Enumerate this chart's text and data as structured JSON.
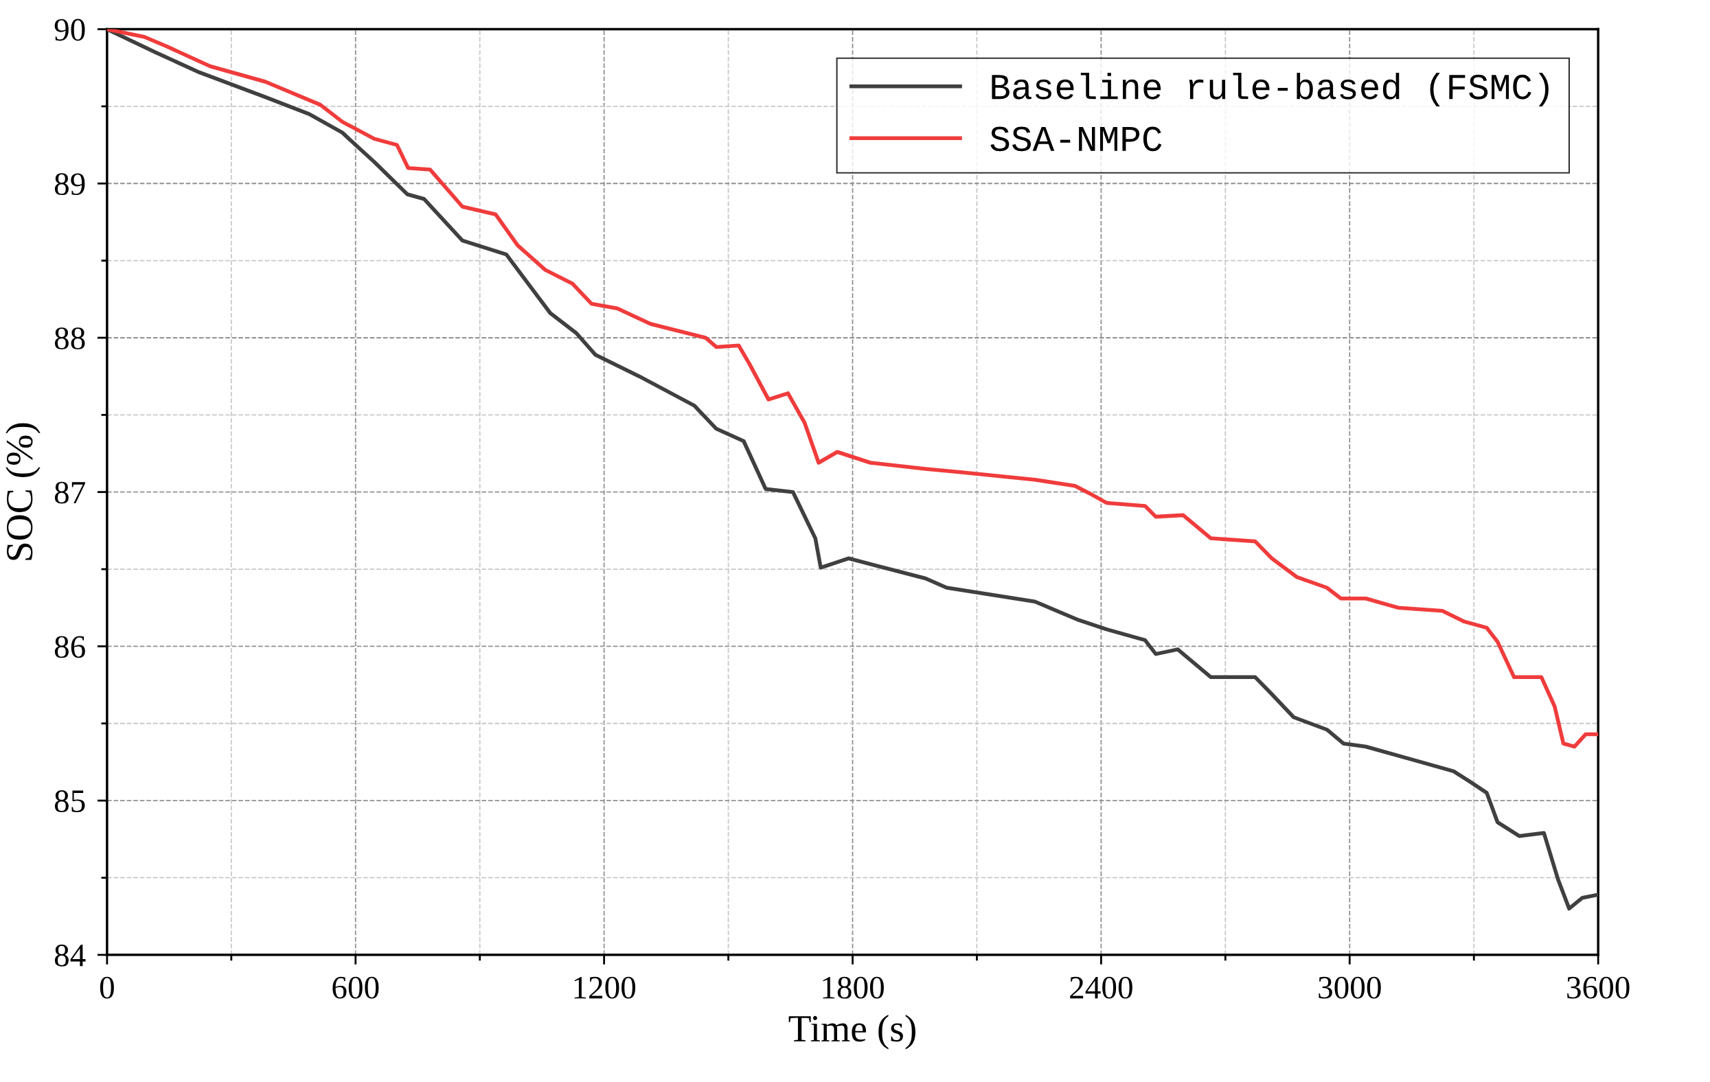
{
  "chart_data": {
    "type": "line",
    "xlabel": "Time (s)",
    "ylabel": "SOC (%)",
    "xlim": [
      0,
      3600
    ],
    "ylim": [
      84,
      90
    ],
    "xticks": [
      0,
      {
        "value": 300,
        "label": null
      },
      600,
      {
        "value": 900,
        "label": null
      },
      1200,
      {
        "value": 1500,
        "label": null
      },
      1800,
      {
        "value": 2100,
        "label": null
      },
      2400,
      {
        "value": 2700,
        "label": null
      },
      3000,
      {
        "value": 3300,
        "label": null
      },
      3600
    ],
    "yticks": [
      84,
      {
        "value": 84.5,
        "label": null
      },
      85,
      {
        "value": 85.5,
        "label": null
      },
      86,
      {
        "value": 86.5,
        "label": null
      },
      87,
      {
        "value": 87.5,
        "label": null
      },
      88,
      {
        "value": 88.5,
        "label": null
      },
      89,
      {
        "value": 89.5,
        "label": null
      },
      90
    ],
    "grid": true,
    "legend": "top right",
    "line_style": "solid",
    "marker": "none",
    "series": [
      {
        "name": "Baseline rule-based (FSMC)",
        "color": "#404040",
        "x": [
          0,
          117,
          223,
          382,
          488,
          568,
          600,
          645,
          725,
          765,
          858,
          964,
          1017,
          1070,
          1133,
          1179,
          1285,
          1418,
          1471,
          1537,
          1590,
          1656,
          1710,
          1723,
          1790,
          1976,
          2027,
          2240,
          2346,
          2413,
          2506,
          2532,
          2585,
          2665,
          2772,
          2812,
          2865,
          2945,
          2985,
          3039,
          3145,
          3251,
          3292,
          3331,
          3357,
          3410,
          3469,
          3503,
          3530,
          3562,
          3600
        ],
        "values": [
          90,
          89.85,
          89.72,
          89.56,
          89.45,
          89.33,
          89.25,
          89.14,
          88.93,
          88.9,
          88.63,
          88.54,
          88.35,
          88.16,
          88.03,
          87.89,
          87.75,
          87.56,
          87.41,
          87.33,
          87.02,
          87.0,
          86.7,
          86.51,
          86.57,
          86.44,
          86.38,
          86.29,
          86.17,
          86.11,
          86.04,
          85.95,
          85.98,
          85.8,
          85.8,
          85.69,
          85.54,
          85.46,
          85.37,
          85.35,
          85.27,
          85.19,
          85.12,
          85.05,
          84.86,
          84.77,
          84.79,
          84.49,
          84.3,
          84.37,
          84.39
        ]
      },
      {
        "name": "SSA-NMPC",
        "color": "#f03c3c",
        "x": [
          0,
          90,
          143,
          249,
          382,
          515,
          568,
          645,
          700,
          727,
          780,
          858,
          938,
          991,
          1058,
          1124,
          1170,
          1232,
          1312,
          1445,
          1471,
          1525,
          1551,
          1597,
          1644,
          1684,
          1718,
          1763,
          1843,
          1976,
          2056,
          2240,
          2337,
          2373,
          2413,
          2506,
          2532,
          2598,
          2665,
          2772,
          2812,
          2872,
          2945,
          2979,
          3039,
          3118,
          3224,
          3277,
          3331,
          3357,
          3397,
          3463,
          3495,
          3516,
          3543,
          3570,
          3600
        ],
        "values": [
          90,
          89.95,
          89.89,
          89.76,
          89.66,
          89.51,
          89.4,
          89.29,
          89.25,
          89.1,
          89.09,
          88.85,
          88.8,
          88.6,
          88.44,
          88.35,
          88.22,
          88.19,
          88.09,
          88.0,
          87.94,
          87.95,
          87.83,
          87.6,
          87.64,
          87.45,
          87.19,
          87.26,
          87.19,
          87.15,
          87.13,
          87.08,
          87.04,
          86.99,
          86.93,
          86.91,
          86.84,
          86.85,
          86.7,
          86.68,
          86.57,
          86.45,
          86.38,
          86.31,
          86.31,
          86.25,
          86.23,
          86.16,
          86.12,
          86.03,
          85.8,
          85.8,
          85.61,
          85.37,
          85.35,
          85.43,
          85.43
        ]
      }
    ]
  }
}
